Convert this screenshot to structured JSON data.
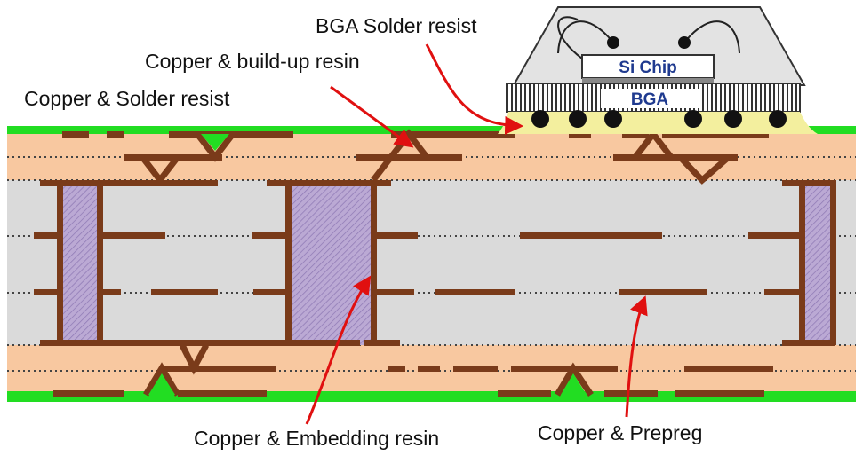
{
  "labels": {
    "bga_solder_resist": "BGA Solder resist",
    "copper_buildup_resin": "Copper & build-up resin",
    "copper_solder_resist": "Copper & Solder resist",
    "copper_embedding_resin": "Copper & Embedding resin",
    "copper_prepreg": "Copper & Prepreg"
  },
  "package": {
    "chip_label": "Si Chip",
    "bga_label": "BGA"
  },
  "colors": {
    "buildup": "#f8c8a0",
    "core": "#dadada",
    "copper": "#7a3b1a",
    "solder_resist": "#22dd22",
    "embedding_resin": "#b8a4cc",
    "arrow": "#e01010",
    "bga_fill": "#f3ef9e"
  }
}
